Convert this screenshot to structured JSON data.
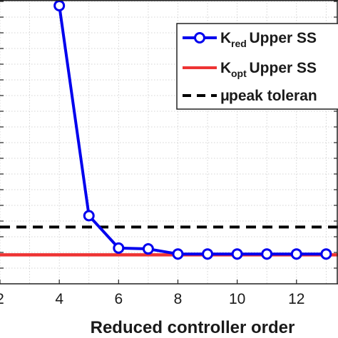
{
  "chart_data": {
    "type": "line",
    "title": "",
    "xlabel": "Reduced controller order",
    "ylabel": "",
    "xlim": [
      2,
      13.4
    ],
    "ylim": [
      0,
      1
    ],
    "xticks": [
      2,
      4,
      6,
      8,
      10,
      12
    ],
    "xtick_labels": [
      "2",
      "4",
      "6",
      "8",
      "10",
      "12"
    ],
    "grid": true,
    "legend_position": "top-right",
    "series": [
      {
        "name_main": "K",
        "name_sub": "red",
        "name_rest": " Upper SS",
        "style": "line-marker",
        "color": "#0000ee",
        "x": [
          4,
          5,
          6,
          7,
          8,
          9,
          10,
          11,
          12,
          13
        ],
        "y": [
          0.98,
          0.24,
          0.126,
          0.123,
          0.105,
          0.105,
          0.105,
          0.105,
          0.105,
          0.105
        ]
      },
      {
        "name_main": "K",
        "name_sub": "opt",
        "name_rest": " Upper SS",
        "style": "line",
        "color": "#ee3333",
        "x": [
          2,
          13.4
        ],
        "y": [
          0.102,
          0.102
        ]
      },
      {
        "name_main": "μ",
        "name_sub": "",
        "name_rest": " peak toleran",
        "style": "dashed",
        "color": "#000000",
        "x": [
          2,
          13.4
        ],
        "y": [
          0.2,
          0.2
        ]
      }
    ]
  }
}
